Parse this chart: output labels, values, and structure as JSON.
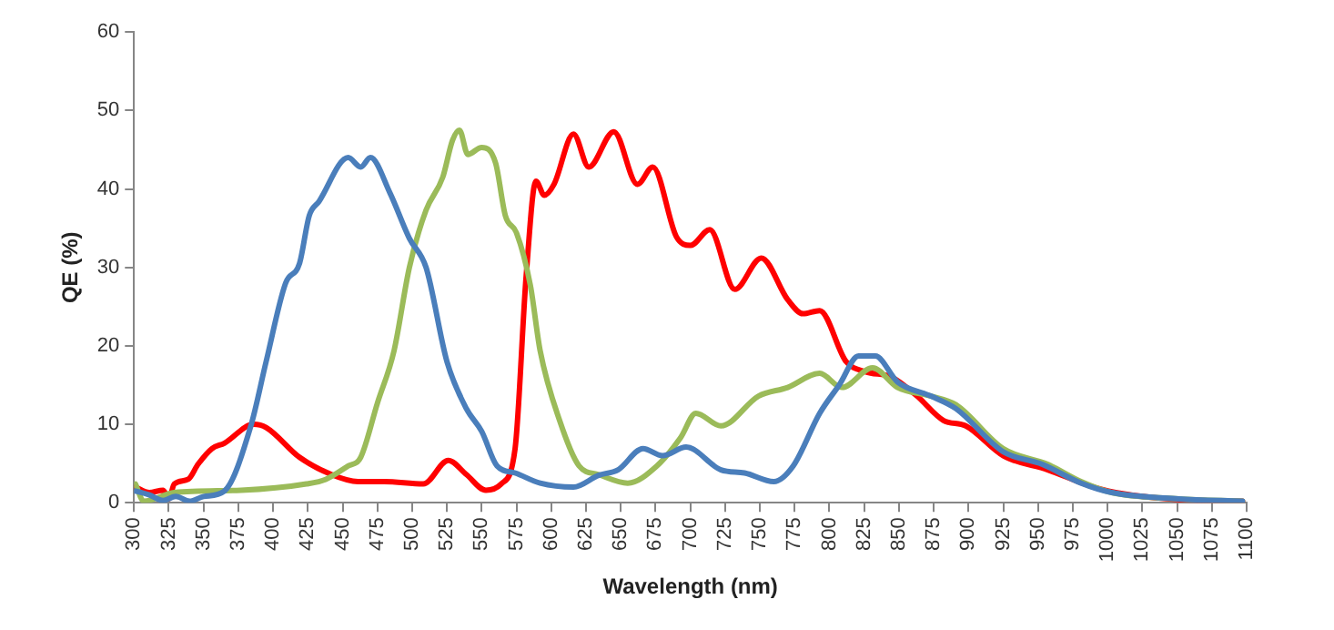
{
  "chart_data": {
    "type": "line",
    "xlabel": "Wavelength (nm)",
    "ylabel": "QE (%)",
    "xlim": [
      300,
      1100
    ],
    "xticks": [
      300,
      325,
      350,
      375,
      400,
      425,
      450,
      475,
      500,
      525,
      550,
      575,
      600,
      625,
      650,
      675,
      700,
      725,
      750,
      775,
      800,
      825,
      850,
      875,
      900,
      925,
      950,
      975,
      1000,
      1025,
      1050,
      1075,
      1100
    ],
    "ylim": [
      0,
      60
    ],
    "yticks": [
      0,
      10,
      20,
      30,
      40,
      50,
      60
    ],
    "grid": false,
    "legend": false,
    "marker": "none",
    "line_style": "solid",
    "series": [
      {
        "color": "#4a7ebb",
        "x": [
          301,
          311,
          321,
          330,
          340,
          350,
          365,
          384,
          395,
          409,
          419,
          426,
          433,
          454,
          463,
          470,
          484,
          498,
          510,
          525,
          539,
          550,
          561,
          574,
          592,
          616,
          634,
          648,
          666,
          680,
          697,
          722,
          739,
          760,
          774,
          793,
          807,
          821,
          833,
          849,
          873,
          891,
          925,
          953,
          981,
          1003,
          1051,
          1097
        ],
        "values": [
          1.5,
          1,
          0.3,
          0.8,
          0.2,
          0.8,
          1.5,
          9.8,
          18,
          28,
          30.5,
          36.6,
          38.4,
          44,
          42.8,
          44,
          39.5,
          33.7,
          30,
          18,
          12,
          9.1,
          4.7,
          3.8,
          2.5,
          2,
          3.5,
          4.2,
          6.9,
          6,
          7.1,
          4.2,
          3.8,
          2.7,
          4.7,
          11.4,
          15,
          18.7,
          18.7,
          15.4,
          13.6,
          12,
          6.5,
          4.9,
          2.5,
          1.3,
          0.5,
          0.2
        ]
      },
      {
        "color": "#9bbb59",
        "x": [
          301,
          307,
          329,
          377,
          424,
          438,
          454,
          463,
          475,
          487,
          498,
          510,
          522,
          529,
          534,
          540,
          550,
          560,
          567,
          575,
          585,
          592,
          606,
          620,
          634,
          655,
          676,
          693,
          704,
          722,
          749,
          770,
          793,
          809,
          831,
          849,
          873,
          891,
          925,
          957,
          981,
          1003,
          1051,
          1097
        ],
        "values": [
          2.4,
          0.2,
          1.3,
          1.6,
          2.4,
          3,
          4.7,
          5.8,
          12.7,
          19.4,
          30,
          37.3,
          41.5,
          46.2,
          47.5,
          44.4,
          45.3,
          43.3,
          36.6,
          34.4,
          27.7,
          19.4,
          10.5,
          4.7,
          3.6,
          2.5,
          4.7,
          8.3,
          11.4,
          9.8,
          13.6,
          14.7,
          16.5,
          14.7,
          17.2,
          14.7,
          13.6,
          12.5,
          6.9,
          4.9,
          2.7,
          1.3,
          0.5,
          0.2
        ]
      },
      {
        "color": "#ff0000",
        "x": [
          301,
          311,
          321,
          325,
          329,
          339,
          346,
          356,
          365,
          386,
          395,
          419,
          442,
          461,
          480,
          508,
          526,
          539,
          553,
          564,
          574,
          582,
          589,
          595,
          602,
          616,
          627,
          645,
          662,
          673,
          690,
          700,
          714,
          732,
          751,
          770,
          781,
          793,
          812,
          826,
          845,
          863,
          882,
          898,
          925,
          957,
          990,
          1013,
          1051,
          1097
        ],
        "values": [
          2,
          1.3,
          1.6,
          0.5,
          2.4,
          3,
          4.9,
          6.9,
          7.6,
          10,
          9.6,
          5.8,
          3.6,
          2.7,
          2.7,
          2.4,
          5.4,
          3.6,
          1.6,
          2.4,
          6.9,
          29,
          41,
          39.2,
          40.6,
          47,
          42.8,
          47.3,
          40.6,
          42.8,
          33.9,
          32.8,
          34.8,
          27.2,
          31.2,
          25.9,
          24.1,
          24.5,
          18,
          16.7,
          16,
          13.6,
          10.5,
          9.8,
          6,
          4.2,
          2,
          1.1,
          0.4,
          0.2
        ]
      }
    ]
  }
}
